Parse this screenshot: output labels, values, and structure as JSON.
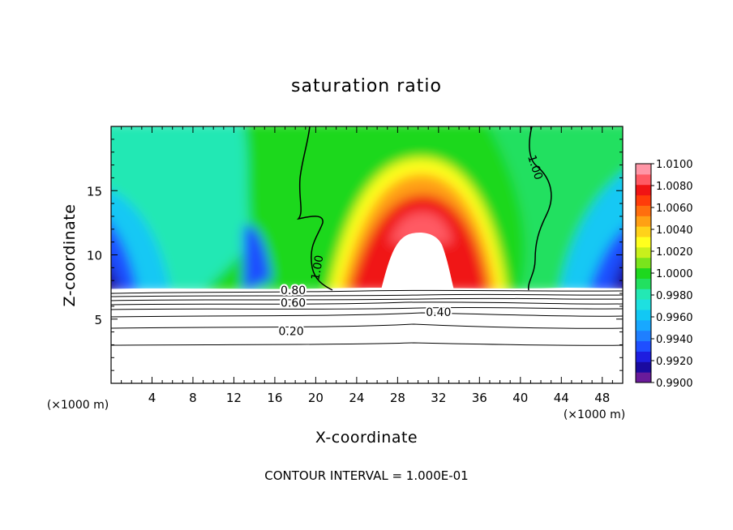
{
  "chart_data": {
    "type": "heatmap",
    "title": "saturation ratio",
    "xlabel": "X-coordinate",
    "ylabel": "Z-coordinate",
    "x_unit_label": "(×1000 m)",
    "x_unit_label_right": "(×1000 m)",
    "xlim": [
      0,
      50
    ],
    "ylim": [
      0,
      20
    ],
    "x_ticks": [
      4,
      8,
      12,
      16,
      20,
      24,
      28,
      32,
      36,
      40,
      44,
      48
    ],
    "y_ticks": [
      5,
      10,
      15
    ],
    "colorbar": {
      "labels": [
        "1.0100",
        "1.0080",
        "1.0060",
        "1.0040",
        "1.0020",
        "1.0000",
        "0.9980",
        "0.9960",
        "0.9940",
        "0.9920",
        "0.9900"
      ],
      "levels": [
        0.99,
        0.991,
        0.992,
        0.993,
        0.994,
        0.995,
        0.996,
        0.997,
        0.998,
        0.999,
        1.0,
        1.001,
        1.002,
        1.003,
        1.004,
        1.005,
        1.006,
        1.007,
        1.008,
        1.009,
        1.01
      ],
      "colors": [
        "#6a1b9a",
        "#1a0aa0",
        "#1e1ee0",
        "#1f4fff",
        "#1f7fff",
        "#18a8ff",
        "#12c8f4",
        "#1ee0e0",
        "#23e8b4",
        "#22e060",
        "#1ed81e",
        "#7ae41c",
        "#c8f01c",
        "#ffff1e",
        "#ffd21a",
        "#ffa014",
        "#ff6e0e",
        "#ff3c0a",
        "#f01414",
        "#ff5a64",
        "#ff96a6"
      ]
    },
    "contour_labels": [
      {
        "text": "1.00",
        "x": 20.2,
        "y": 9.0,
        "rotate": -80
      },
      {
        "text": "1.00",
        "x": 41.4,
        "y": 16.8,
        "rotate": 72
      },
      {
        "text": "0.80",
        "x": 17.8,
        "y": 7.2,
        "rotate": 0
      },
      {
        "text": "0.60",
        "x": 17.8,
        "y": 6.2,
        "rotate": 0
      },
      {
        "text": "0.40",
        "x": 32.0,
        "y": 5.5,
        "rotate": 0
      },
      {
        "text": "0.20",
        "x": 17.6,
        "y": 4.0,
        "rotate": 0
      }
    ],
    "footer": "CONTOUR INTERVAL = 1.000E-01"
  }
}
